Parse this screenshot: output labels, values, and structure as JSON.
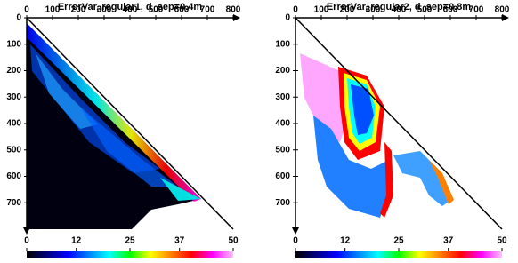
{
  "chart_data": [
    {
      "type": "heatmap",
      "title": "ErrorVar, regular1, d_sep=0.4m",
      "xlim": [
        0,
        800
      ],
      "xticks": [
        0,
        100,
        200,
        300,
        400,
        500,
        600,
        700,
        800
      ],
      "ylim": [
        0,
        800
      ],
      "yticks": [
        0,
        100,
        200,
        300,
        400,
        500,
        600,
        700
      ],
      "clim": [
        0,
        50
      ],
      "cticks": [
        0,
        12,
        25,
        37,
        50
      ],
      "colormap": [
        "#000000",
        "#000080",
        "#0000ff",
        "#0080ff",
        "#00ffff",
        "#00ff00",
        "#ffff00",
        "#ff8000",
        "#ff0000",
        "#ff00ff",
        "#ffc0ff"
      ]
    },
    {
      "type": "heatmap",
      "title": "ErrorVar, regular2, d_sep=0.8m",
      "xlim": [
        0,
        800
      ],
      "xticks": [
        0,
        100,
        200,
        300,
        400,
        500,
        600,
        700,
        800
      ],
      "ylim": [
        0,
        800
      ],
      "yticks": [
        0,
        100,
        200,
        300,
        400,
        500,
        600,
        700
      ],
      "clim": [
        0,
        50
      ],
      "cticks": [
        0,
        12,
        25,
        37,
        50
      ],
      "colormap": [
        "#000000",
        "#000080",
        "#0000ff",
        "#0080ff",
        "#00ffff",
        "#00ff00",
        "#ffff00",
        "#ff8000",
        "#ff0000",
        "#ff00ff",
        "#ffc0ff"
      ]
    }
  ]
}
